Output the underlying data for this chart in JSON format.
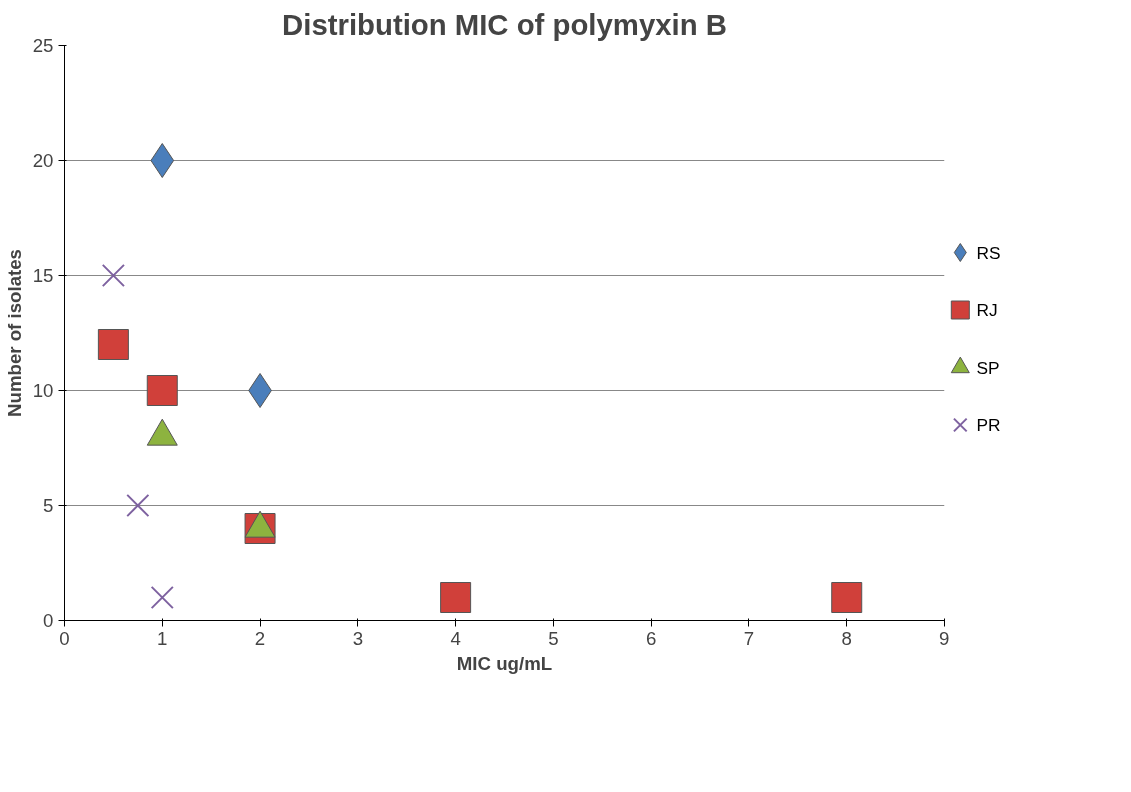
{
  "chart_data": {
    "type": "scatter",
    "title": "Distribution MIC of polymyxin B",
    "xlabel": "MIC ug/mL",
    "ylabel": "Number of isolates",
    "xlim": [
      0,
      9
    ],
    "xticks": [
      0,
      1,
      2,
      3,
      4,
      5,
      6,
      7,
      8,
      9
    ],
    "ylim": [
      0,
      25
    ],
    "yticks": [
      0,
      5,
      10,
      15,
      20,
      25
    ],
    "grid": "y",
    "legend": "right",
    "series": [
      {
        "name": "RS",
        "color": "#4a7ebb",
        "marker": "diamond",
        "x": [
          1,
          2
        ],
        "values": [
          20,
          10
        ]
      },
      {
        "name": "RJ",
        "color": "#d0403a",
        "marker": "square",
        "x": [
          0.5,
          1,
          2,
          4,
          8
        ],
        "values": [
          12,
          10,
          4,
          1,
          1
        ]
      },
      {
        "name": "SP",
        "color": "#8db33f",
        "marker": "triangle",
        "x": [
          1,
          2
        ],
        "values": [
          8,
          4
        ]
      },
      {
        "name": "PR",
        "color": "#7e62a0",
        "marker": "cross",
        "x": [
          0.5,
          0.75,
          1
        ],
        "values": [
          15,
          5,
          1
        ]
      }
    ]
  }
}
